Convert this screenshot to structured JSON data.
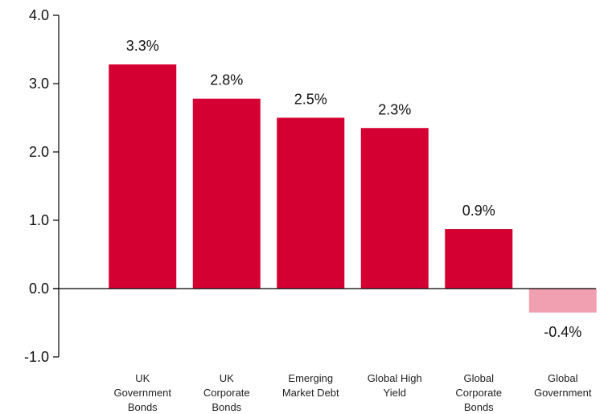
{
  "chart_data": {
    "type": "bar",
    "title": "",
    "xlabel": "",
    "ylabel": "",
    "ylim": [
      -1.0,
      4.0
    ],
    "yticks": [
      "4.0",
      "3.0",
      "2.0",
      "1.0",
      "0.0",
      "-1.0"
    ],
    "ytick_values": [
      4.0,
      3.0,
      2.0,
      1.0,
      0.0,
      -1.0
    ],
    "grid": false,
    "legend": "none",
    "categories": [
      [
        "UK",
        "Government",
        "Bonds"
      ],
      [
        "UK",
        "Corporate",
        "Bonds"
      ],
      [
        "Emerging",
        "Market Debt"
      ],
      [
        "Global High",
        "Yield"
      ],
      [
        "Global",
        "Corporate",
        "Bonds"
      ],
      [
        "Global",
        "Government"
      ]
    ],
    "values": [
      3.3,
      2.8,
      2.5,
      2.3,
      0.9,
      -0.4
    ],
    "bar_values_shown": [
      3.28,
      2.78,
      2.5,
      2.35,
      0.87,
      -0.35
    ],
    "data_labels": [
      "3.3%",
      "2.8%",
      "2.5%",
      "2.3%",
      "0.9%",
      "-0.4%"
    ],
    "colors": {
      "positive": "#d50032",
      "negative": "#f0a0b0",
      "axis": "#000000"
    }
  }
}
